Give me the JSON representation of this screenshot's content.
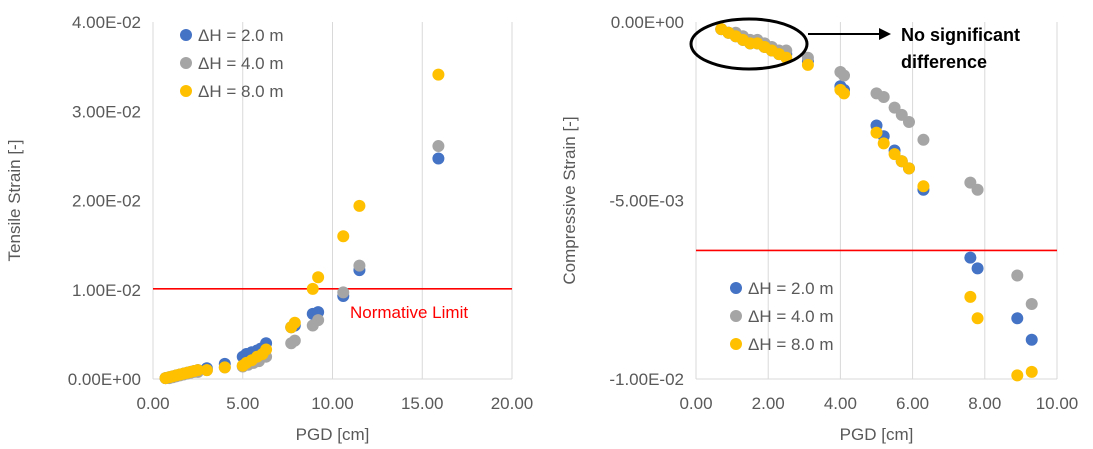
{
  "colors": {
    "series": [
      "#4472C4",
      "#A5A5A5",
      "#FFC000"
    ],
    "limit": "#FF0000",
    "grid": "#D9D9D9",
    "text": "#595959"
  },
  "chart_data": [
    {
      "type": "scatter",
      "xlabel": "PGD [cm]",
      "ylabel": "Tensile Strain [-]",
      "xlim": [
        0,
        20
      ],
      "ylim": [
        0,
        0.04
      ],
      "x_ticks": [
        "0.00",
        "5.00",
        "10.00",
        "15.00",
        "20.00"
      ],
      "y_ticks": [
        "0.00E+00",
        "1.00E-02",
        "2.00E-02",
        "3.00E-02",
        "4.00E-02"
      ],
      "grid": "vertical",
      "legend_position": "top-left",
      "reference_line": {
        "y": 0.0101,
        "label": "Normative Limit"
      },
      "series": [
        {
          "name": "ΔH   = 2.0 m",
          "points": [
            [
              0.7,
              0.0001
            ],
            [
              0.9,
              0.0002
            ],
            [
              1.1,
              0.0003
            ],
            [
              1.3,
              0.0004
            ],
            [
              1.5,
              0.0005
            ],
            [
              1.7,
              0.0006
            ],
            [
              1.9,
              0.0007
            ],
            [
              2.1,
              0.0008
            ],
            [
              2.3,
              0.0009
            ],
            [
              2.5,
              0.001
            ],
            [
              3.0,
              0.0012
            ],
            [
              4.0,
              0.0017
            ],
            [
              5.0,
              0.0025
            ],
            [
              5.2,
              0.0028
            ],
            [
              5.5,
              0.003
            ],
            [
              5.8,
              0.0032
            ],
            [
              6.0,
              0.0034
            ],
            [
              6.3,
              0.004
            ],
            [
              7.7,
              0.0058
            ],
            [
              7.9,
              0.006
            ],
            [
              8.9,
              0.0073
            ],
            [
              9.2,
              0.0075
            ],
            [
              10.6,
              0.0093
            ],
            [
              11.5,
              0.0122
            ],
            [
              15.9,
              0.0247
            ]
          ]
        },
        {
          "name": "ΔH   = 4.0 m",
          "points": [
            [
              0.7,
              0.0001
            ],
            [
              0.9,
              0.0001
            ],
            [
              1.1,
              0.0002
            ],
            [
              1.3,
              0.0003
            ],
            [
              1.5,
              0.0004
            ],
            [
              1.7,
              0.0005
            ],
            [
              1.9,
              0.0006
            ],
            [
              2.1,
              0.0007
            ],
            [
              2.3,
              0.0008
            ],
            [
              2.5,
              0.0008
            ],
            [
              3.0,
              0.001
            ],
            [
              4.0,
              0.0013
            ],
            [
              5.0,
              0.0014
            ],
            [
              5.3,
              0.0016
            ],
            [
              5.6,
              0.0018
            ],
            [
              5.9,
              0.002
            ],
            [
              6.3,
              0.0025
            ],
            [
              7.7,
              0.004
            ],
            [
              7.9,
              0.0043
            ],
            [
              8.9,
              0.006
            ],
            [
              9.2,
              0.0066
            ],
            [
              10.6,
              0.0097
            ],
            [
              11.5,
              0.0127
            ],
            [
              15.9,
              0.0261
            ]
          ]
        },
        {
          "name": "ΔH   = 8.0 m",
          "points": [
            [
              0.7,
              0.0001
            ],
            [
              0.9,
              0.0002
            ],
            [
              1.1,
              0.0003
            ],
            [
              1.3,
              0.0004
            ],
            [
              1.5,
              0.0005
            ],
            [
              1.7,
              0.0006
            ],
            [
              1.9,
              0.0007
            ],
            [
              2.1,
              0.0008
            ],
            [
              2.3,
              0.0009
            ],
            [
              2.5,
              0.001
            ],
            [
              3.0,
              0.001
            ],
            [
              4.0,
              0.0013
            ],
            [
              5.0,
              0.0015
            ],
            [
              5.2,
              0.0018
            ],
            [
              5.5,
              0.0021
            ],
            [
              5.8,
              0.0025
            ],
            [
              6.1,
              0.0028
            ],
            [
              6.3,
              0.0033
            ],
            [
              7.7,
              0.0058
            ],
            [
              7.9,
              0.0063
            ],
            [
              8.9,
              0.0101
            ],
            [
              9.2,
              0.0114
            ],
            [
              10.6,
              0.016
            ],
            [
              11.5,
              0.0194
            ],
            [
              15.9,
              0.0341
            ]
          ]
        }
      ]
    },
    {
      "type": "scatter",
      "xlabel": "PGD [cm]",
      "ylabel": "Compressive Strain [-]",
      "xlim": [
        0,
        10
      ],
      "ylim": [
        -0.01,
        0
      ],
      "x_ticks": [
        "0.00",
        "2.00",
        "4.00",
        "6.00",
        "8.00",
        "10.00"
      ],
      "y_ticks": [
        "0.00E+00",
        "-5.00E-03",
        "-1.00E-02"
      ],
      "grid": "vertical",
      "legend_position": "bottom-left",
      "reference_line": {
        "y": -0.0064,
        "label": ""
      },
      "annotation": "No significant difference",
      "annotation_lines": [
        "No significant",
        "difference"
      ],
      "series": [
        {
          "name": "ΔH   = 2.0 m",
          "points": [
            [
              0.7,
              -0.0002
            ],
            [
              0.9,
              -0.0003
            ],
            [
              1.1,
              -0.0004
            ],
            [
              1.3,
              -0.0005
            ],
            [
              1.5,
              -0.0006
            ],
            [
              1.7,
              -0.0006
            ],
            [
              1.9,
              -0.0007
            ],
            [
              2.1,
              -0.0008
            ],
            [
              2.3,
              -0.0009
            ],
            [
              2.5,
              -0.0009
            ],
            [
              3.1,
              -0.0011
            ],
            [
              4.0,
              -0.0018
            ],
            [
              4.1,
              -0.0019
            ],
            [
              5.0,
              -0.0029
            ],
            [
              5.2,
              -0.0032
            ],
            [
              5.5,
              -0.0036
            ],
            [
              5.7,
              -0.0039
            ],
            [
              5.9,
              -0.0041
            ],
            [
              6.3,
              -0.0047
            ],
            [
              7.6,
              -0.0066
            ],
            [
              7.8,
              -0.0069
            ],
            [
              8.9,
              -0.0083
            ],
            [
              9.3,
              -0.0089
            ]
          ]
        },
        {
          "name": "ΔH   = 4.0 m",
          "points": [
            [
              0.7,
              -0.0002
            ],
            [
              0.9,
              -0.0003
            ],
            [
              1.1,
              -0.0003
            ],
            [
              1.3,
              -0.0004
            ],
            [
              1.5,
              -0.0005
            ],
            [
              1.7,
              -0.0005
            ],
            [
              1.9,
              -0.0006
            ],
            [
              2.1,
              -0.0007
            ],
            [
              2.3,
              -0.0008
            ],
            [
              2.5,
              -0.0008
            ],
            [
              3.1,
              -0.001
            ],
            [
              4.0,
              -0.0014
            ],
            [
              4.1,
              -0.0015
            ],
            [
              5.0,
              -0.002
            ],
            [
              5.2,
              -0.0021
            ],
            [
              5.5,
              -0.0024
            ],
            [
              5.7,
              -0.0026
            ],
            [
              5.9,
              -0.0028
            ],
            [
              6.3,
              -0.0033
            ],
            [
              7.6,
              -0.0045
            ],
            [
              7.8,
              -0.0047
            ],
            [
              8.9,
              -0.0071
            ],
            [
              9.3,
              -0.0079
            ]
          ]
        },
        {
          "name": "ΔH   = 8.0 m",
          "points": [
            [
              0.7,
              -0.0002
            ],
            [
              0.9,
              -0.0003
            ],
            [
              1.1,
              -0.0004
            ],
            [
              1.3,
              -0.0005
            ],
            [
              1.5,
              -0.0006
            ],
            [
              1.7,
              -0.0006
            ],
            [
              1.9,
              -0.0007
            ],
            [
              2.1,
              -0.0008
            ],
            [
              2.3,
              -0.0009
            ],
            [
              2.5,
              -0.001
            ],
            [
              3.1,
              -0.0012
            ],
            [
              4.0,
              -0.0019
            ],
            [
              4.1,
              -0.002
            ],
            [
              5.0,
              -0.0031
            ],
            [
              5.2,
              -0.0034
            ],
            [
              5.5,
              -0.0037
            ],
            [
              5.7,
              -0.0039
            ],
            [
              5.9,
              -0.0041
            ],
            [
              6.3,
              -0.0046
            ],
            [
              7.6,
              -0.0077
            ],
            [
              7.8,
              -0.0083
            ],
            [
              8.9,
              -0.0099
            ],
            [
              9.3,
              -0.0098
            ]
          ]
        }
      ]
    }
  ]
}
